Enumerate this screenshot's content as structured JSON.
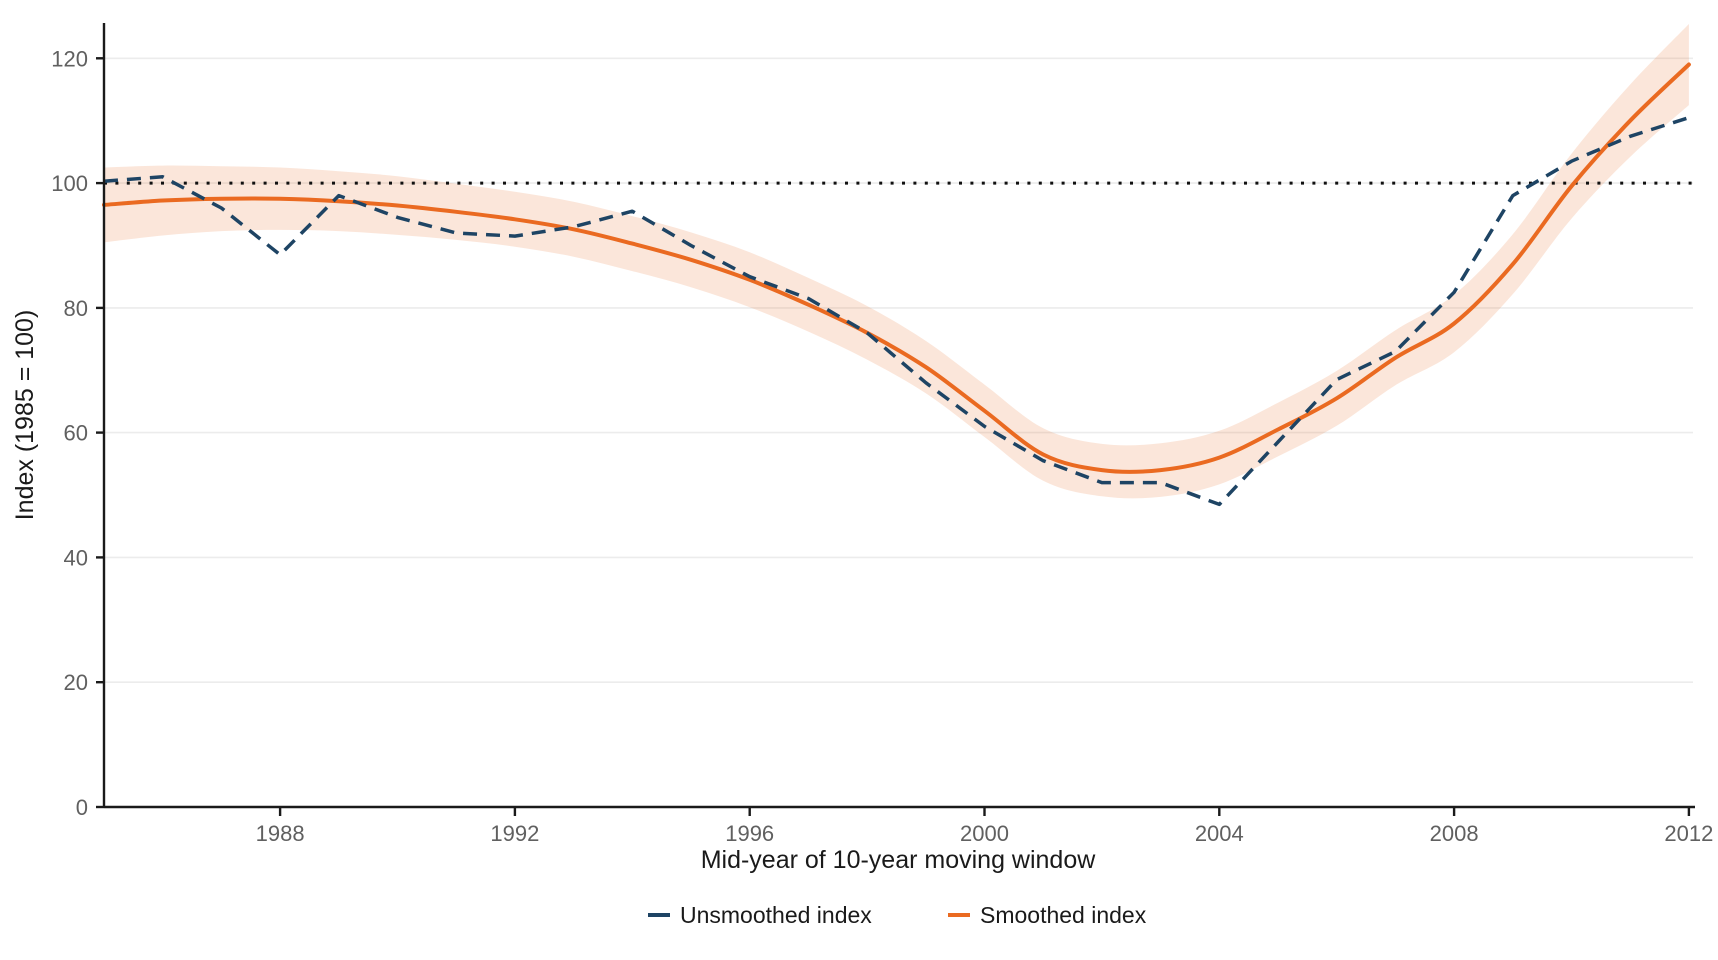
{
  "figure": {
    "xlabel": "Mid-year of 10-year moving window",
    "ylabel": "Index (1985 = 100)",
    "legend": [
      {
        "label": "Unsmoothed index",
        "color": "#1e4464",
        "style": "dashed"
      },
      {
        "label": "Smoothed index",
        "color": "#ea6a21",
        "style": "solid"
      }
    ],
    "colors": {
      "unsmoothed": "#1e4464",
      "smoothed": "#ea6a21",
      "band": "rgba(234,106,33,0.17)",
      "gridline": "#ececec",
      "axis": "#1a1a1a",
      "tick_label": "#606060",
      "reference": "#111111"
    }
  },
  "chart_data": {
    "type": "line",
    "title": "",
    "xlabel": "Mid-year of 10-year moving window",
    "ylabel": "Index (1985 = 100)",
    "x": [
      1985,
      1986,
      1987,
      1988,
      1989,
      1990,
      1991,
      1992,
      1993,
      1994,
      1995,
      1996,
      1997,
      1998,
      1999,
      2000,
      2001,
      2002,
      2003,
      2004,
      2005,
      2006,
      2007,
      2008,
      2009,
      2010,
      2011,
      2012
    ],
    "series": [
      {
        "name": "Unsmoothed index",
        "style": "dashed",
        "color": "#1e4464",
        "values": [
          100.3,
          101,
          96,
          88.5,
          98,
          94.5,
          92,
          91.5,
          93,
          95.5,
          90,
          85,
          81.5,
          76,
          68,
          61,
          55.5,
          52,
          52,
          48.5,
          58.5,
          68.5,
          73,
          82.5,
          98,
          103.5,
          107.5,
          110.5
        ]
      },
      {
        "name": "Smoothed index",
        "style": "solid",
        "color": "#ea6a21",
        "values": [
          96.5,
          97.2,
          97.5,
          97.5,
          97.1,
          96.4,
          95.4,
          94.2,
          92.6,
          90.3,
          87.7,
          84.5,
          80.5,
          76,
          70.5,
          63.5,
          56.5,
          54,
          54,
          56,
          60.5,
          65.5,
          72,
          77.5,
          87,
          99.5,
          110,
          119
        ],
        "band_upper": [
          102.5,
          102.8,
          102.7,
          102.5,
          101.9,
          101.1,
          99.9,
          98.6,
          97.0,
          94.7,
          92.1,
          88.9,
          84.8,
          80.3,
          74.7,
          67.7,
          60.7,
          58.2,
          58.3,
          60.3,
          64.8,
          69.9,
          76.4,
          82.1,
          91.8,
          104.7,
          115.8,
          125.5
        ],
        "band_lower": [
          90.5,
          91.6,
          92.3,
          92.5,
          92.3,
          91.7,
          90.9,
          89.8,
          88.2,
          85.9,
          83.3,
          80.1,
          76.2,
          71.7,
          66.3,
          59.3,
          52.3,
          49.8,
          49.7,
          51.7,
          56.2,
          61.1,
          67.6,
          72.9,
          82.2,
          94.3,
          104.2,
          112.5
        ]
      }
    ],
    "reference_line": {
      "y": 100,
      "style": "dotted",
      "color": "#111111"
    },
    "x_ticks": [
      1988,
      1992,
      1996,
      2000,
      2004,
      2008,
      2012
    ],
    "y_ticks": [
      0,
      20,
      40,
      60,
      80,
      100,
      120
    ],
    "xlim": [
      1985,
      2012.05
    ],
    "ylim": [
      0,
      126
    ],
    "grid": "horizontal-major-only",
    "legend_position": "bottom-center"
  }
}
